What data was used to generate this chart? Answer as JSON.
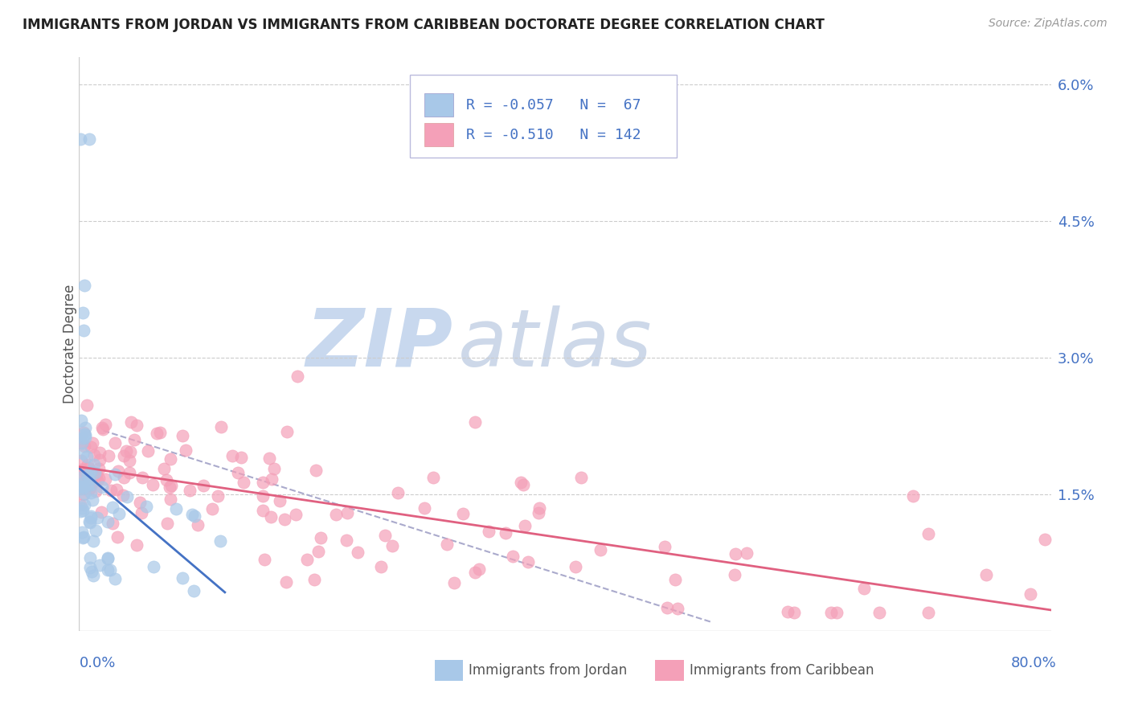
{
  "title": "IMMIGRANTS FROM JORDAN VS IMMIGRANTS FROM CARIBBEAN DOCTORATE DEGREE CORRELATION CHART",
  "source": "Source: ZipAtlas.com",
  "ylabel": "Doctorate Degree",
  "jordan_R": -0.057,
  "jordan_N": 67,
  "caribbean_R": -0.51,
  "caribbean_N": 142,
  "jordan_color": "#a8c8e8",
  "caribbean_color": "#f4a0b8",
  "jordan_line_color": "#4472c4",
  "caribbean_line_color": "#e06080",
  "dashed_line_color": "#aaaacc",
  "legend_text_color": "#4472c4",
  "watermark_zip_color": "#c8d8ee",
  "watermark_atlas_color": "#7090c0",
  "background_color": "#ffffff",
  "grid_color": "#cccccc",
  "right_tick_color": "#4472c4",
  "xlim": [
    0.0,
    0.8
  ],
  "ylim": [
    0.0,
    0.063
  ],
  "yticks": [
    0.0,
    0.015,
    0.03,
    0.045,
    0.06
  ],
  "ytick_labels": [
    "",
    "1.5%",
    "3.0%",
    "4.5%",
    "6.0%"
  ]
}
